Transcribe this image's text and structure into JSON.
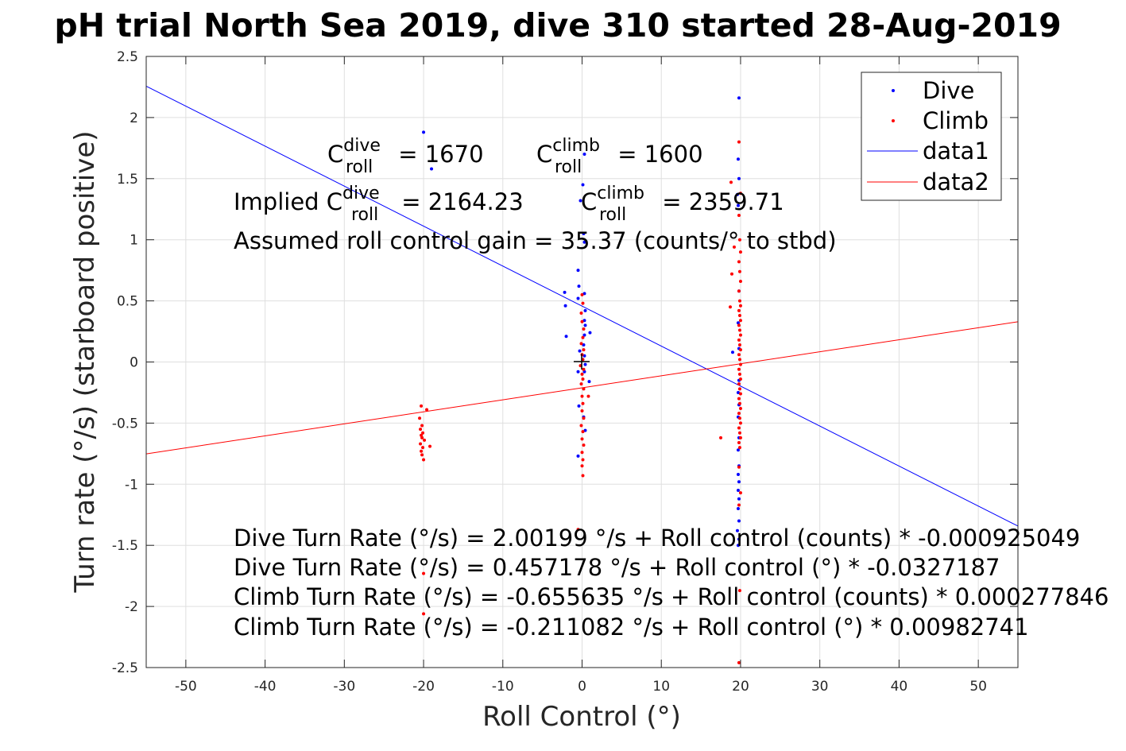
{
  "chart_data": {
    "type": "scatter",
    "title": "pH trial North Sea 2019, dive 310 started 28-Aug-2019",
    "xlabel": "Roll Control (°)",
    "ylabel": "Turn rate (°/s) (starboard positive)",
    "xlim": [
      -55,
      55
    ],
    "ylim": [
      -2.5,
      2.5
    ],
    "xticks": [
      -50,
      -40,
      -30,
      -20,
      -10,
      0,
      10,
      20,
      30,
      40,
      50
    ],
    "yticks": [
      -2.5,
      -2,
      -1.5,
      -1,
      -0.5,
      0,
      0.5,
      1,
      1.5,
      2,
      2.5
    ],
    "xtick_labels": [
      "-50",
      "-40",
      "-30",
      "-20",
      "-10",
      "0",
      "10",
      "20",
      "30",
      "40",
      "50"
    ],
    "ytick_labels": [
      "-2.5",
      "-2",
      "-1.5",
      "-1",
      "-0.5",
      "0",
      "0.5",
      "1",
      "1.5",
      "2",
      "2.5"
    ],
    "grid": true,
    "legend_position": "top-right",
    "legend": [
      {
        "label": "Dive",
        "kind": "marker",
        "color": "#0000ff"
      },
      {
        "label": "Climb",
        "kind": "marker",
        "color": "#ff0000"
      },
      {
        "label": "data1",
        "kind": "line",
        "color": "#0000ff"
      },
      {
        "label": "data2",
        "kind": "line",
        "color": "#ff0000"
      }
    ],
    "series": [
      {
        "name": "Dive",
        "color": "#0000ff",
        "kind": "scatter",
        "points": [
          [
            -20,
            1.88
          ],
          [
            -19,
            1.58
          ],
          [
            -2.2,
            0.57
          ],
          [
            -2.1,
            0.46
          ],
          [
            -2.0,
            0.21
          ],
          [
            -0.5,
            0.75
          ],
          [
            -0.4,
            0.62
          ],
          [
            -0.5,
            0.52
          ],
          [
            -0.3,
            0.09
          ],
          [
            -0.5,
            -0.08
          ],
          [
            -0.4,
            -0.36
          ],
          [
            -0.5,
            -0.77
          ],
          [
            0.3,
            1.7
          ],
          [
            0.1,
            1.45
          ],
          [
            -0.2,
            1.32
          ],
          [
            0.2,
            1.05
          ],
          [
            0.3,
            0.98
          ],
          [
            0.3,
            0.56
          ],
          [
            0.4,
            0.42
          ],
          [
            0.3,
            0.34
          ],
          [
            0.4,
            0.3
          ],
          [
            0.3,
            0.22
          ],
          [
            0.2,
            0.14
          ],
          [
            0.3,
            0.05
          ],
          [
            0.4,
            -0.02
          ],
          [
            0.3,
            -0.08
          ],
          [
            0.2,
            -0.45
          ],
          [
            0.4,
            -0.56
          ],
          [
            1.0,
            0.24
          ],
          [
            0.9,
            -0.16
          ],
          [
            19.0,
            0.08
          ],
          [
            19.8,
            2.16
          ],
          [
            19.7,
            1.66
          ],
          [
            19.8,
            1.5
          ],
          [
            19.6,
            1.37
          ],
          [
            19.7,
            1.28
          ],
          [
            19.8,
            0.58
          ],
          [
            19.7,
            0.32
          ],
          [
            19.8,
            0.11
          ],
          [
            19.8,
            -0.15
          ],
          [
            19.7,
            -0.25
          ],
          [
            19.8,
            -0.35
          ],
          [
            19.7,
            -0.45
          ],
          [
            19.8,
            -0.62
          ],
          [
            19.7,
            -0.72
          ],
          [
            19.8,
            -0.85
          ],
          [
            19.7,
            -0.92
          ],
          [
            19.8,
            -0.98
          ],
          [
            19.7,
            -1.05
          ],
          [
            19.8,
            -1.12
          ],
          [
            19.7,
            -1.2
          ],
          [
            19.8,
            -1.3
          ],
          [
            19.6,
            -1.38
          ],
          [
            19.8,
            -1.45
          ],
          [
            19.7,
            -1.5
          ]
        ]
      },
      {
        "name": "Climb",
        "color": "#ff0000",
        "kind": "scatter",
        "points": [
          [
            -20.3,
            -0.36
          ],
          [
            -20.5,
            -0.46
          ],
          [
            -20.2,
            -0.52
          ],
          [
            -20.4,
            -0.55
          ],
          [
            -20.1,
            -0.58
          ],
          [
            -20.3,
            -0.6
          ],
          [
            -20.2,
            -0.62
          ],
          [
            -19.9,
            -0.64
          ],
          [
            -20.4,
            -0.67
          ],
          [
            -20.1,
            -0.7
          ],
          [
            -20.3,
            -0.73
          ],
          [
            -20.2,
            -0.76
          ],
          [
            -20.0,
            -0.8
          ],
          [
            -19.6,
            -0.39
          ],
          [
            -19.2,
            -0.69
          ],
          [
            -20.0,
            -1.73
          ],
          [
            -20.0,
            -2.06
          ],
          [
            -0.5,
            -1.37
          ],
          [
            0.0,
            0.55
          ],
          [
            0.1,
            0.48
          ],
          [
            -0.1,
            0.4
          ],
          [
            0.0,
            0.33
          ],
          [
            0.2,
            0.27
          ],
          [
            0.1,
            0.2
          ],
          [
            -0.1,
            0.15
          ],
          [
            0.2,
            0.1
          ],
          [
            0.0,
            0.06
          ],
          [
            0.1,
            0.02
          ],
          [
            -0.2,
            -0.03
          ],
          [
            0.2,
            -0.06
          ],
          [
            0.0,
            -0.1
          ],
          [
            0.1,
            -0.14
          ],
          [
            -0.1,
            -0.18
          ],
          [
            0.2,
            -0.22
          ],
          [
            0.0,
            -0.28
          ],
          [
            0.1,
            -0.34
          ],
          [
            0.0,
            -0.4
          ],
          [
            0.2,
            -0.46
          ],
          [
            -0.1,
            -0.52
          ],
          [
            0.1,
            -0.57
          ],
          [
            0.0,
            -0.63
          ],
          [
            0.2,
            -0.68
          ],
          [
            0.0,
            -0.74
          ],
          [
            0.1,
            -0.8
          ],
          [
            0.0,
            -0.85
          ],
          [
            0.1,
            -0.93
          ],
          [
            0.8,
            -0.28
          ],
          [
            18.8,
            1.47
          ],
          [
            19.2,
            0.94
          ],
          [
            18.9,
            0.72
          ],
          [
            18.7,
            0.45
          ],
          [
            17.5,
            -0.62
          ],
          [
            19.8,
            1.8
          ],
          [
            20.0,
            1.38
          ],
          [
            19.8,
            1.2
          ],
          [
            19.9,
            1.0
          ],
          [
            20.0,
            0.9
          ],
          [
            19.8,
            0.82
          ],
          [
            19.9,
            0.74
          ],
          [
            20.0,
            0.66
          ],
          [
            19.8,
            0.58
          ],
          [
            19.9,
            0.5
          ],
          [
            20.0,
            0.46
          ],
          [
            19.8,
            0.42
          ],
          [
            19.9,
            0.38
          ],
          [
            20.0,
            0.34
          ],
          [
            19.8,
            0.3
          ],
          [
            19.9,
            0.26
          ],
          [
            20.0,
            0.22
          ],
          [
            19.8,
            0.18
          ],
          [
            19.9,
            0.14
          ],
          [
            20.0,
            0.1
          ],
          [
            19.8,
            0.06
          ],
          [
            19.9,
            0.02
          ],
          [
            20.0,
            -0.02
          ],
          [
            19.8,
            -0.06
          ],
          [
            19.9,
            -0.1
          ],
          [
            20.0,
            -0.14
          ],
          [
            19.8,
            -0.18
          ],
          [
            19.9,
            -0.22
          ],
          [
            20.0,
            -0.26
          ],
          [
            19.8,
            -0.3
          ],
          [
            19.9,
            -0.34
          ],
          [
            20.0,
            -0.38
          ],
          [
            19.8,
            -0.42
          ],
          [
            19.9,
            -0.46
          ],
          [
            20.0,
            -0.5
          ],
          [
            19.8,
            -0.54
          ],
          [
            19.9,
            -0.58
          ],
          [
            20.0,
            -0.62
          ],
          [
            19.8,
            -0.66
          ],
          [
            19.9,
            -0.7
          ],
          [
            19.8,
            -0.86
          ],
          [
            20.0,
            -1.07
          ],
          [
            19.8,
            -1.17
          ],
          [
            19.9,
            -1.87
          ],
          [
            19.8,
            -2.46
          ]
        ]
      },
      {
        "name": "data1",
        "color": "#0000ff",
        "kind": "line",
        "intercept": 0.457178,
        "slope": -0.0327187
      },
      {
        "name": "data2",
        "color": "#ff0000",
        "kind": "line",
        "intercept": -0.211082,
        "slope": 0.00982741
      }
    ],
    "annotations": {
      "c_dive": {
        "base": "C",
        "sup": "dive",
        "sub": "roll",
        "text": " = 1670"
      },
      "c_climb": {
        "base": "C",
        "sup": "climb",
        "sub": "roll",
        "text": " = 1600"
      },
      "implied_prefix": "Implied C",
      "implied_dive_sup": "dive",
      "implied_dive_sub": "roll",
      "implied_dive_text": " = 2164.23",
      "implied_climb_base": "C",
      "implied_climb_sup": "climb",
      "implied_climb_sub": "roll",
      "implied_climb_text": " = 2359.71",
      "gain": "Assumed roll control gain = 35.37 (counts/° to stbd)",
      "eq1": "Dive Turn Rate (°/s) = 2.00199 °/s + Roll control (counts) * -0.000925049",
      "eq2": "Dive Turn Rate (°/s) = 0.457178 °/s + Roll control (°) * -0.0327187",
      "eq3": "Climb Turn Rate (°/s) = -0.655635 °/s + Roll control (counts) * 0.000277846",
      "eq4": "Climb Turn Rate (°/s) = -0.211082 °/s + Roll control (°) * 0.00982741"
    }
  }
}
